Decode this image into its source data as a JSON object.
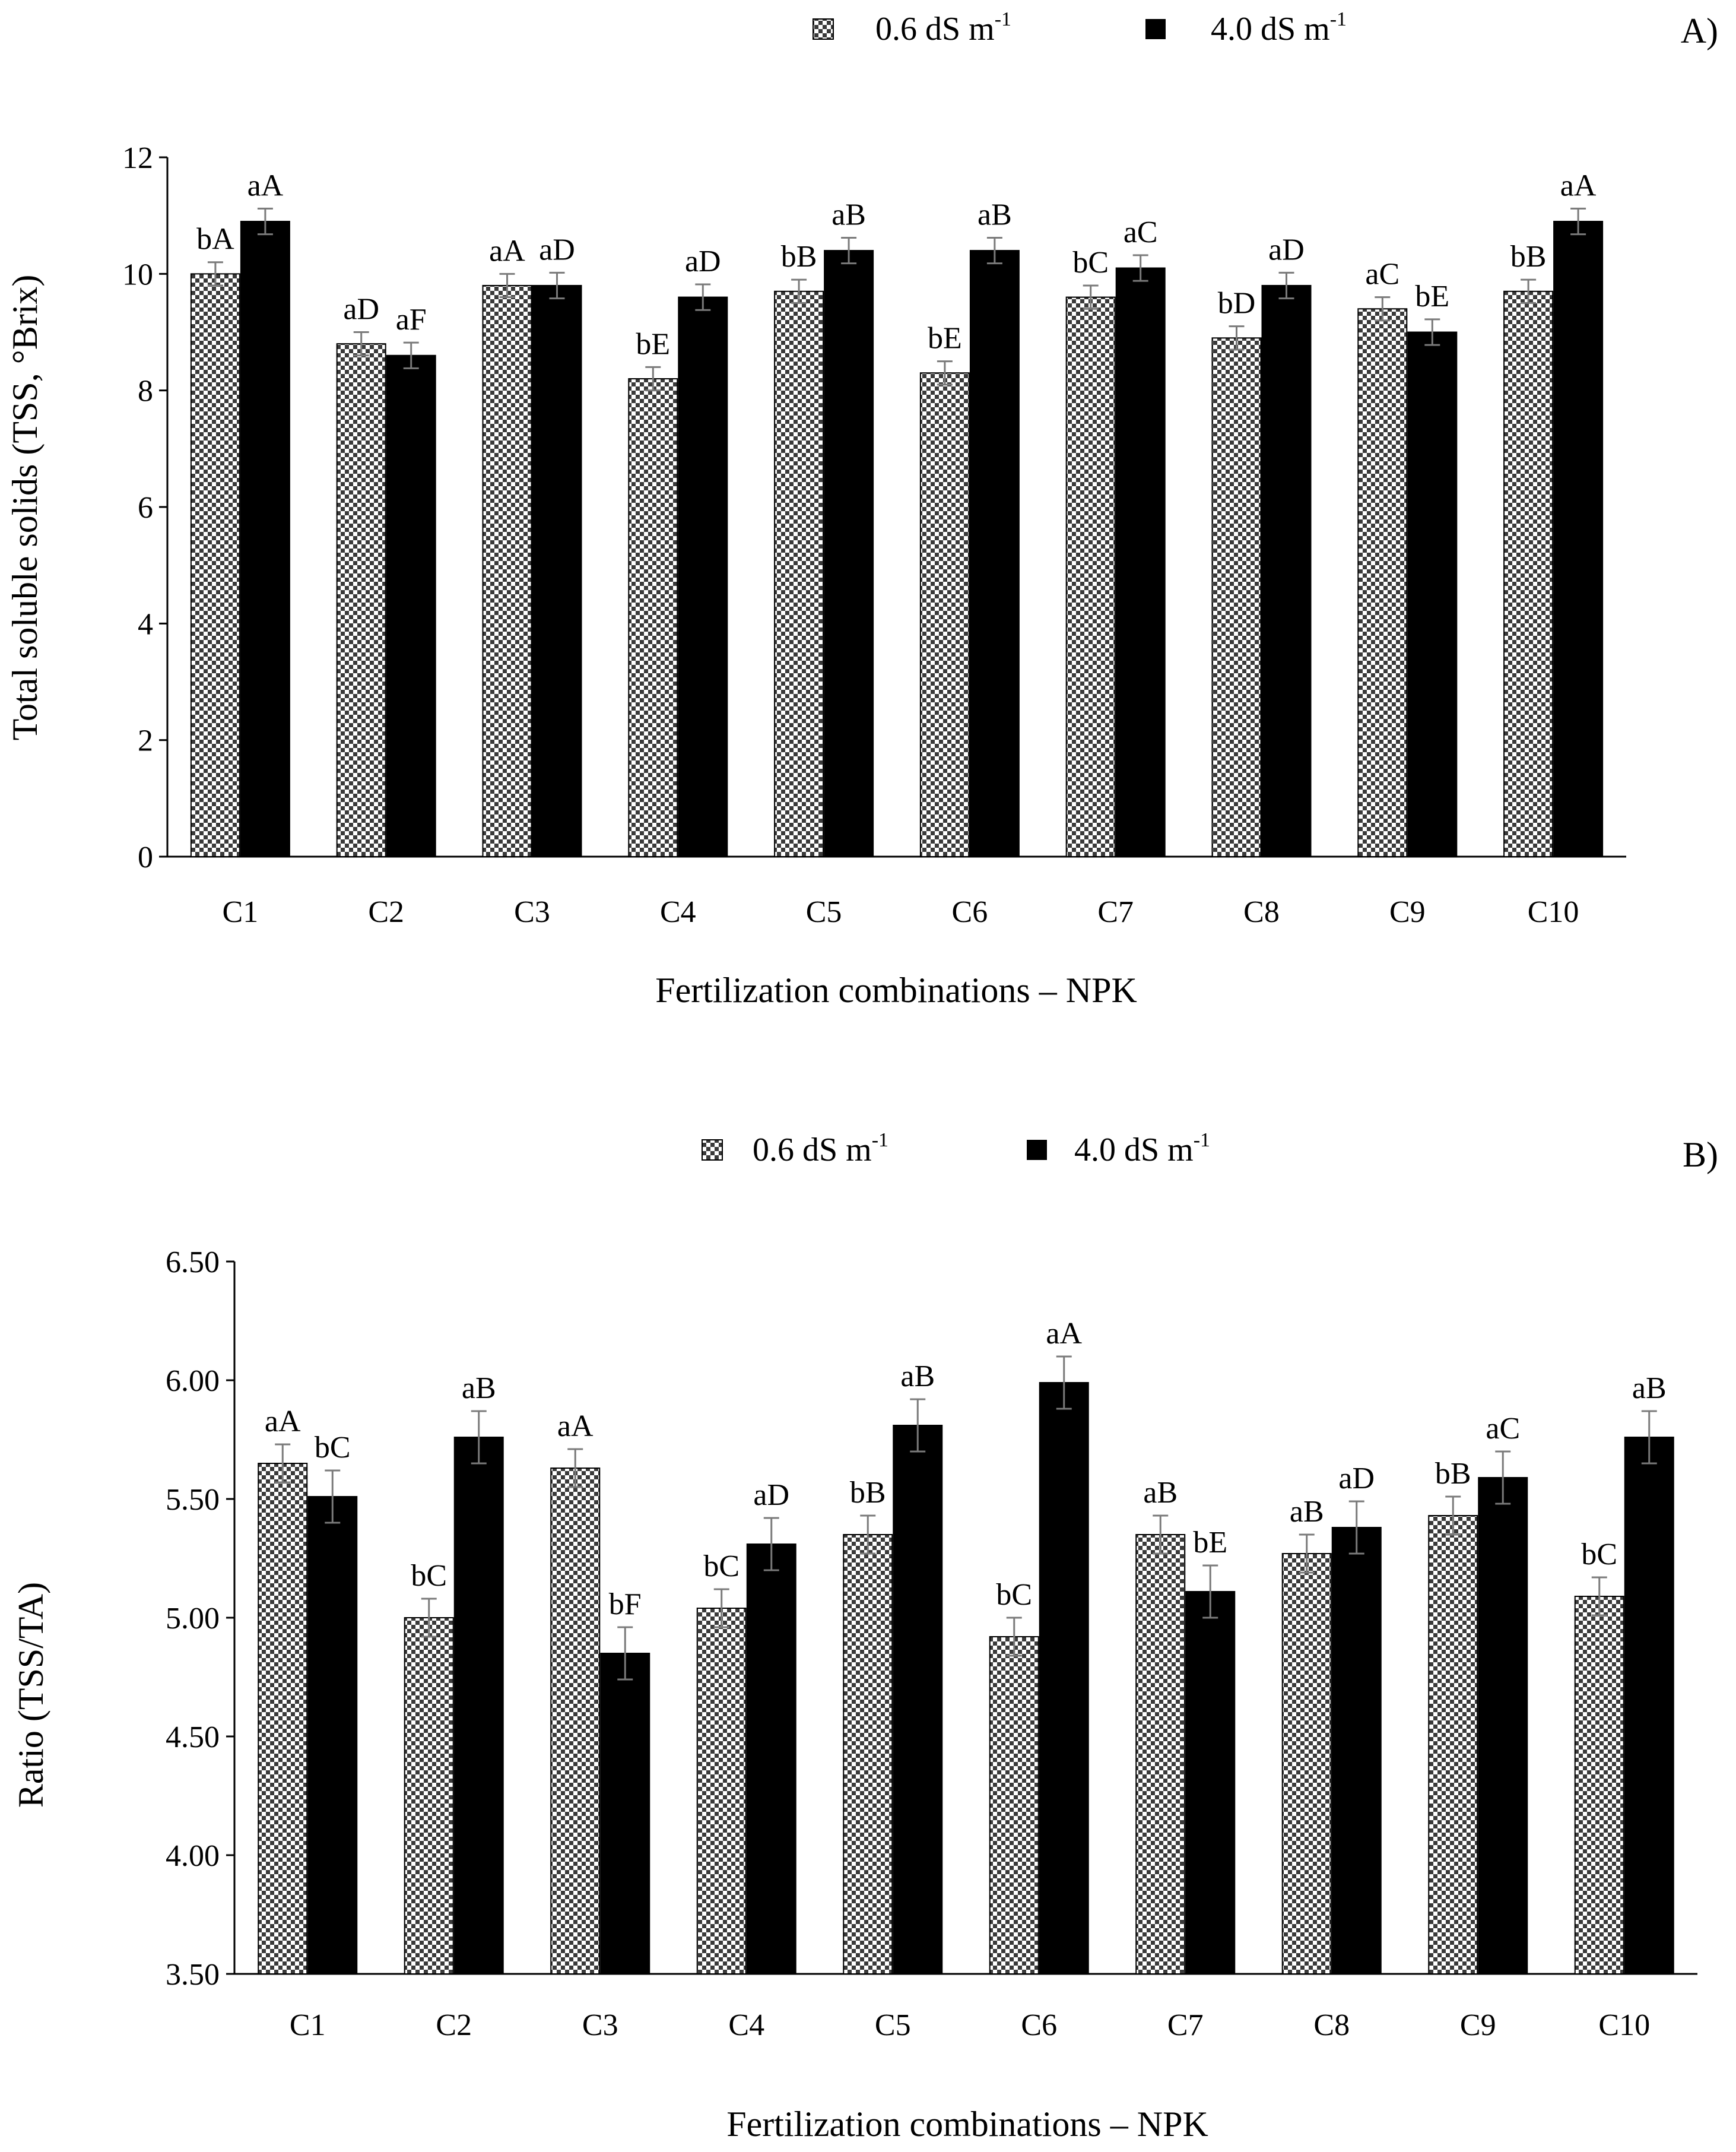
{
  "chart_data": [
    {
      "type": "bar",
      "panel_label": "A)",
      "categories": [
        "C1",
        "C2",
        "C3",
        "C4",
        "C5",
        "C6",
        "C7",
        "C8",
        "C9",
        "C10"
      ],
      "series": [
        {
          "name": "0.6 dS m",
          "name_sup": "-1",
          "fill": "checkered",
          "values": [
            10.0,
            8.8,
            9.8,
            8.2,
            9.7,
            8.3,
            9.6,
            8.9,
            9.4,
            9.7
          ],
          "errors": [
            0.2,
            0.2,
            0.2,
            0.2,
            0.2,
            0.2,
            0.2,
            0.2,
            0.2,
            0.2
          ],
          "labels": [
            "bA",
            "aD",
            "aA",
            "bE",
            "bB",
            "bE",
            "bC",
            "bD",
            "aC",
            "bB"
          ]
        },
        {
          "name": "4.0 dS m",
          "name_sup": "-1",
          "fill": "solid",
          "values": [
            10.9,
            8.6,
            9.8,
            9.6,
            10.4,
            10.4,
            10.1,
            9.8,
            9.0,
            10.9
          ],
          "errors": [
            0.22,
            0.22,
            0.22,
            0.22,
            0.22,
            0.22,
            0.22,
            0.22,
            0.22,
            0.22
          ],
          "labels": [
            "aA",
            "aF",
            "aD",
            "aD",
            "aB",
            "aB",
            "aC",
            "aD",
            "bE",
            "aA"
          ]
        }
      ],
      "ylabel": "Total soluble solids (TSS, °Brix)",
      "xlabel": "Fertilization combinations – NPK",
      "ylim": [
        0,
        12
      ],
      "yticks": [
        "0",
        "2",
        "4",
        "6",
        "8",
        "10",
        "12"
      ],
      "grid": false
    },
    {
      "type": "bar",
      "panel_label": "B)",
      "categories": [
        "C1",
        "C2",
        "C3",
        "C4",
        "C5",
        "C6",
        "C7",
        "C8",
        "C9",
        "C10"
      ],
      "series": [
        {
          "name": "0.6 dS m",
          "name_sup": "-1",
          "fill": "checkered",
          "values": [
            5.65,
            5.0,
            5.63,
            5.04,
            5.35,
            4.92,
            5.35,
            5.27,
            5.43,
            5.09
          ],
          "errors": [
            0.08,
            0.08,
            0.08,
            0.08,
            0.08,
            0.08,
            0.08,
            0.08,
            0.08,
            0.08
          ],
          "labels": [
            "aA",
            "bC",
            "aA",
            "bC",
            "bB",
            "bC",
            "aB",
            "aB",
            "bB",
            "bC"
          ]
        },
        {
          "name": "4.0 dS m",
          "name_sup": "-1",
          "fill": "solid",
          "values": [
            5.51,
            5.76,
            4.85,
            5.31,
            5.81,
            5.99,
            5.11,
            5.38,
            5.59,
            5.76
          ],
          "errors": [
            0.11,
            0.11,
            0.11,
            0.11,
            0.11,
            0.11,
            0.11,
            0.11,
            0.11,
            0.11
          ],
          "labels": [
            "bC",
            "aB",
            "bF",
            "aD",
            "aB",
            "aA",
            "bE",
            "aD",
            "aC",
            "aB"
          ]
        }
      ],
      "ylabel": "Ratio (TSS/TA)",
      "xlabel": "Fertilization combinations – NPK",
      "ylim": [
        3.5,
        6.5
      ],
      "yticks": [
        "3.50",
        "4.00",
        "4.50",
        "5.00",
        "5.50",
        "6.00",
        "6.50"
      ],
      "grid": false
    }
  ],
  "colors": {
    "axis": "#000000",
    "solid_bar": "#000000",
    "checker_dark": "#3a3a3a",
    "checker_light": "#ffffff",
    "error_bar": "#7a7a7a"
  }
}
